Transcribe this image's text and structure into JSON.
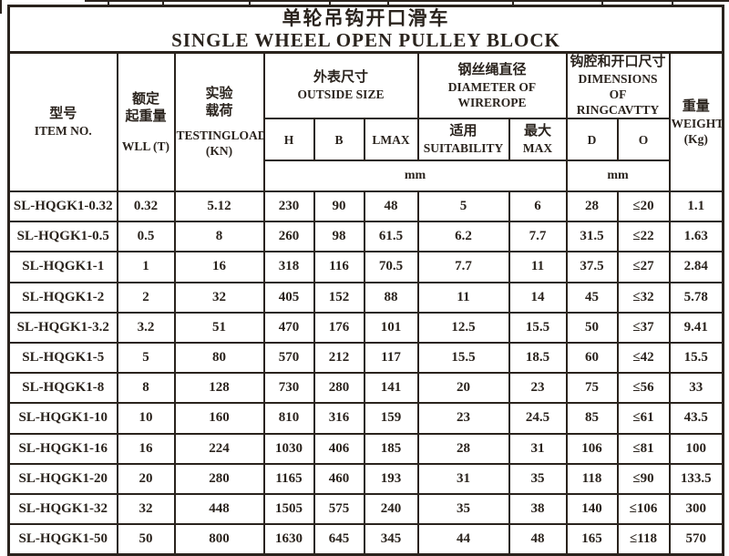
{
  "title": {
    "zh": "单轮吊钩开口滑车",
    "en": "SINGLE WHEEL OPEN PULLEY BLOCK"
  },
  "header": {
    "item_no": {
      "zh": "型号",
      "en": "ITEM NO."
    },
    "rated_load": {
      "zh_line1": "额定",
      "zh_line2": "起重量",
      "en": "WLL (T)"
    },
    "testing_load": {
      "zh_line1": "实验",
      "zh_line2": "载荷",
      "en_line1": "TESTINGLOAD",
      "en_line2": "(KN)"
    },
    "outside_size": {
      "zh": "外表尺寸",
      "en": "OUTSIDE SIZE"
    },
    "outside_cols": {
      "h": "H",
      "b": "B",
      "lmax": "LMAX"
    },
    "wirerope": {
      "zh": "钢丝绳直径",
      "en_line1": "DIAMETER OF",
      "en_line2": "WIREROPE"
    },
    "wirerope_cols": {
      "suitability": {
        "zh": "适用",
        "en": "SUITABILITY"
      },
      "max": {
        "zh": "最大",
        "en": "MAX"
      }
    },
    "ringcavity": {
      "zh": "钩腔和开口尺寸",
      "en_line1": "DIMENSIONS OF",
      "en_line2": "RINGCAVTTY"
    },
    "ringcavity_cols": {
      "d": "D",
      "o": "O"
    },
    "weight": {
      "zh": "重量",
      "en_line1": "WEIGHT",
      "en_line2": "(Kg)"
    },
    "unit_mm_left": "mm",
    "unit_mm_right": "mm"
  },
  "rows": [
    [
      "SL-HQGK1-0.32",
      "0.32",
      "5.12",
      "230",
      "90",
      "48",
      "5",
      "6",
      "28",
      "≤20",
      "1.1"
    ],
    [
      "SL-HQGK1-0.5",
      "0.5",
      "8",
      "260",
      "98",
      "61.5",
      "6.2",
      "7.7",
      "31.5",
      "≤22",
      "1.63"
    ],
    [
      "SL-HQGK1-1",
      "1",
      "16",
      "318",
      "116",
      "70.5",
      "7.7",
      "11",
      "37.5",
      "≤27",
      "2.84"
    ],
    [
      "SL-HQGK1-2",
      "2",
      "32",
      "405",
      "152",
      "88",
      "11",
      "14",
      "45",
      "≤32",
      "5.78"
    ],
    [
      "SL-HQGK1-3.2",
      "3.2",
      "51",
      "470",
      "176",
      "101",
      "12.5",
      "15.5",
      "50",
      "≤37",
      "9.41"
    ],
    [
      "SL-HQGK1-5",
      "5",
      "80",
      "570",
      "212",
      "117",
      "15.5",
      "18.5",
      "60",
      "≤42",
      "15.5"
    ],
    [
      "SL-HQGK1-8",
      "8",
      "128",
      "730",
      "280",
      "141",
      "20",
      "23",
      "75",
      "≤56",
      "33"
    ],
    [
      "SL-HQGK1-10",
      "10",
      "160",
      "810",
      "316",
      "159",
      "23",
      "24.5",
      "85",
      "≤61",
      "43.5"
    ],
    [
      "SL-HQGK1-16",
      "16",
      "224",
      "1030",
      "406",
      "185",
      "28",
      "31",
      "106",
      "≤81",
      "100"
    ],
    [
      "SL-HQGK1-20",
      "20",
      "280",
      "1165",
      "460",
      "193",
      "31",
      "35",
      "118",
      "≤90",
      "133.5"
    ],
    [
      "SL-HQGK1-32",
      "32",
      "448",
      "1505",
      "575",
      "240",
      "35",
      "38",
      "140",
      "≤106",
      "300"
    ],
    [
      "SL-HQGK1-50",
      "50",
      "800",
      "1630",
      "645",
      "345",
      "44",
      "48",
      "165",
      "≤118",
      "570"
    ]
  ],
  "colors": {
    "ink": "#2a231d",
    "paper": "#ffffff"
  }
}
